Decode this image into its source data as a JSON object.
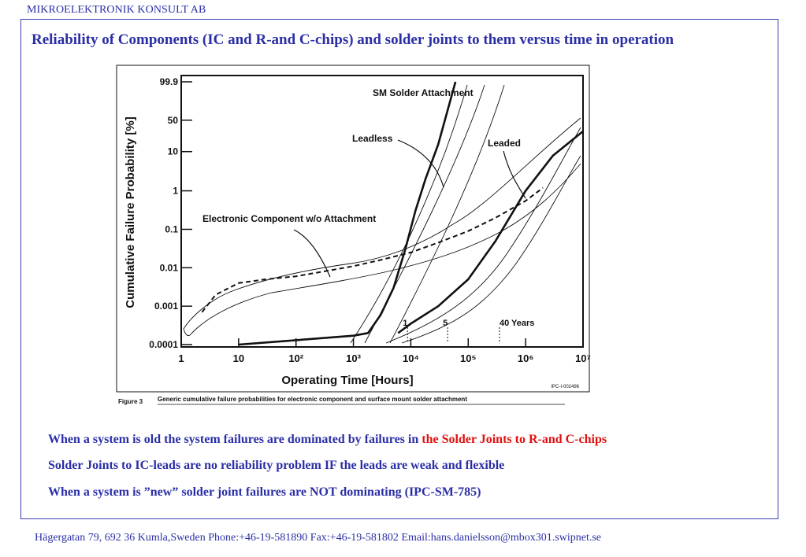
{
  "header": {
    "company": "MIKROELEKTRONIK KONSULT AB",
    "title": "Reliability of Components (IC and R-and C-chips) and solder joints to them versus time in operation"
  },
  "chart_data": {
    "type": "line",
    "xlabel": "Operating Time [Hours]",
    "ylabel": "Cumulative Failure Probability [%]",
    "x_scale": "log",
    "y_scale": "weibull-probability",
    "xlim": [
      1,
      10000000
    ],
    "x_ticks": [
      "1",
      "10",
      "10²",
      "10³",
      "10⁴",
      "10⁵",
      "10⁶",
      "10⁷"
    ],
    "y_ticks": [
      "99.9",
      "50",
      "10",
      "1",
      "0.1",
      "0.01",
      "0.001",
      "0.0001"
    ],
    "year_marks": [
      {
        "label": "1",
        "hours": 8760
      },
      {
        "label": "5",
        "hours": 43800
      },
      {
        "label": "40 Years",
        "hours": 350400
      }
    ],
    "annotations": [
      "SM Solder Attachment",
      "Leadless",
      "Leaded",
      "Electronic Component w/o Attachment"
    ],
    "figure_id": "IPC-I-002496",
    "caption_label": "Figure 3",
    "caption": "Generic cumulative failure probabilities for electronic component and surface mount solder attachment",
    "series": [
      {
        "name": "Electronic Component w/o Attachment",
        "style": "dashed",
        "points": [
          [
            2.3,
            0.0007
          ],
          [
            4,
            0.002
          ],
          [
            10,
            0.004
          ],
          [
            30,
            0.005
          ],
          [
            100,
            0.006
          ],
          [
            300,
            0.008
          ],
          [
            1000,
            0.011
          ],
          [
            3000,
            0.016
          ],
          [
            10000,
            0.025
          ],
          [
            30000,
            0.045
          ],
          [
            100000,
            0.09
          ],
          [
            300000,
            0.2
          ],
          [
            1000000,
            0.55
          ],
          [
            2000000,
            1.2
          ]
        ]
      },
      {
        "name": "Leadless",
        "style": "solid-bold",
        "points": [
          [
            10,
            0.0001
          ],
          [
            100,
            0.00013
          ],
          [
            1000,
            0.00017
          ],
          [
            1800,
            0.0002
          ],
          [
            3000,
            0.0006
          ],
          [
            5000,
            0.003
          ],
          [
            8000,
            0.03
          ],
          [
            12000,
            0.3
          ],
          [
            18000,
            2
          ],
          [
            30000,
            15
          ],
          [
            60000,
            99.9
          ]
        ]
      },
      {
        "name": "Leaded",
        "style": "solid-bold",
        "points": [
          [
            6000,
            0.0002
          ],
          [
            10000,
            0.00035
          ],
          [
            30000,
            0.001
          ],
          [
            100000,
            0.005
          ],
          [
            300000,
            0.05
          ],
          [
            1000000,
            1
          ],
          [
            3000000,
            8
          ],
          [
            10000000,
            30
          ]
        ]
      }
    ]
  },
  "notes": {
    "line1_prefix": "When a system is old the system failures are dominated by failures in",
    "line1_highlight": "the Solder  Joints to R-and C-chips",
    "line2": "Solder Joints to IC-leads are no reliability problem IF the leads are weak and flexible",
    "line3": "When a system is ”new” solder joint failures are NOT dominating (IPC-SM-785)"
  },
  "footer": {
    "address": "Hägergatan 79, 692 36 Kumla,Sweden  Phone:+46-19-581890   Fax:+46-19-581802   Email:hans.danielsson@mbox301.swipnet.se"
  },
  "colors": {
    "text_blue": "#2b2fa6",
    "highlight_red": "#e01010",
    "chart_ink": "#111111"
  }
}
